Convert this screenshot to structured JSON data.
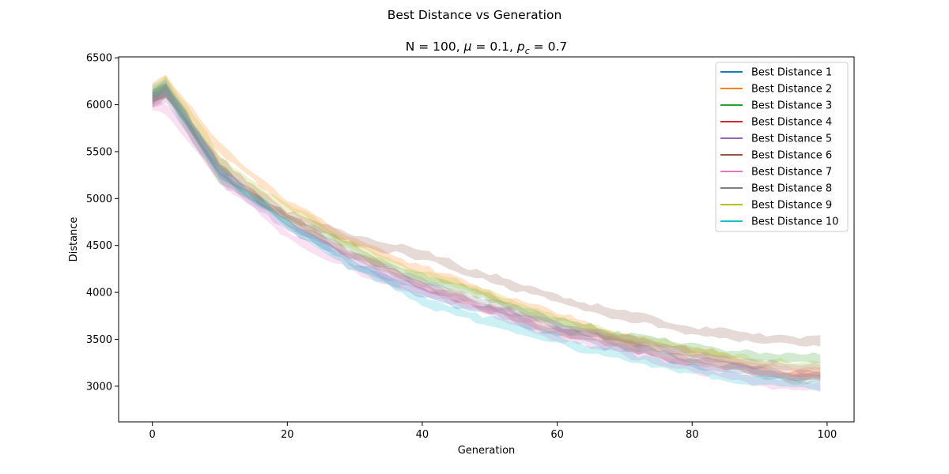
{
  "chart_data": {
    "type": "line",
    "suptitle": "Best Distance vs Generation",
    "title": {
      "prefix": "N = 100, ",
      "mu_symbol": "μ",
      "mu_value": " = 0.1, ",
      "pc_symbol": "p",
      "pc_subscript": "c",
      "pc_value": " = 0.7"
    },
    "xlabel": "Generation",
    "ylabel": "Distance",
    "xlim": [
      -5,
      104
    ],
    "ylim": [
      2620,
      6510
    ],
    "xticks": [
      0,
      20,
      40,
      60,
      80,
      100
    ],
    "yticks": [
      3000,
      3500,
      4000,
      4500,
      5000,
      5500,
      6000,
      6500
    ],
    "grid": false,
    "legend_position": "top-right",
    "generations": {
      "start": 0,
      "end": 99
    },
    "series": [
      {
        "name": "Best Distance 1",
        "color": "#1f77b4",
        "anchors": [
          [
            0,
            6100
          ],
          [
            2,
            6150
          ],
          [
            10,
            5320
          ],
          [
            20,
            4750
          ],
          [
            30,
            4300
          ],
          [
            40,
            3990
          ],
          [
            50,
            3790
          ],
          [
            60,
            3570
          ],
          [
            70,
            3420
          ],
          [
            80,
            3260
          ],
          [
            90,
            3150
          ],
          [
            99,
            3080
          ]
        ]
      },
      {
        "name": "Best Distance 2",
        "color": "#ff7f0e",
        "anchors": [
          [
            0,
            6180
          ],
          [
            2,
            6250
          ],
          [
            10,
            5520
          ],
          [
            20,
            4960
          ],
          [
            30,
            4540
          ],
          [
            40,
            4230
          ],
          [
            50,
            3980
          ],
          [
            60,
            3730
          ],
          [
            70,
            3520
          ],
          [
            80,
            3350
          ],
          [
            90,
            3220
          ],
          [
            99,
            3120
          ]
        ]
      },
      {
        "name": "Best Distance 3",
        "color": "#2ca02c",
        "anchors": [
          [
            0,
            6080
          ],
          [
            2,
            6150
          ],
          [
            10,
            5200
          ],
          [
            20,
            4800
          ],
          [
            30,
            4450
          ],
          [
            40,
            4150
          ],
          [
            50,
            3950
          ],
          [
            60,
            3680
          ],
          [
            70,
            3520
          ],
          [
            80,
            3400
          ],
          [
            90,
            3320
          ],
          [
            99,
            3250
          ]
        ]
      },
      {
        "name": "Best Distance 4",
        "color": "#d62728",
        "anchors": [
          [
            0,
            6050
          ],
          [
            2,
            6150
          ],
          [
            10,
            5300
          ],
          [
            20,
            4800
          ],
          [
            30,
            4380
          ],
          [
            40,
            4050
          ],
          [
            50,
            3820
          ],
          [
            60,
            3600
          ],
          [
            70,
            3420
          ],
          [
            80,
            3280
          ],
          [
            90,
            3160
          ],
          [
            99,
            3080
          ]
        ]
      },
      {
        "name": "Best Distance 5",
        "color": "#9467bd",
        "anchors": [
          [
            0,
            6050
          ],
          [
            2,
            6100
          ],
          [
            10,
            5250
          ],
          [
            20,
            4700
          ],
          [
            30,
            4350
          ],
          [
            40,
            4050
          ],
          [
            50,
            3850
          ],
          [
            60,
            3650
          ],
          [
            70,
            3500
          ],
          [
            80,
            3350
          ],
          [
            90,
            3250
          ],
          [
            99,
            3180
          ]
        ]
      },
      {
        "name": "Best Distance 6",
        "color": "#8c564b",
        "anchors": [
          [
            0,
            6100
          ],
          [
            2,
            6150
          ],
          [
            10,
            5350
          ],
          [
            20,
            4850
          ],
          [
            30,
            4550
          ],
          [
            40,
            4400
          ],
          [
            50,
            4150
          ],
          [
            60,
            3950
          ],
          [
            70,
            3750
          ],
          [
            80,
            3600
          ],
          [
            90,
            3500
          ],
          [
            99,
            3460
          ]
        ]
      },
      {
        "name": "Best Distance 7",
        "color": "#e377c2",
        "anchors": [
          [
            0,
            6000
          ],
          [
            2,
            5950
          ],
          [
            10,
            5250
          ],
          [
            20,
            4620
          ],
          [
            30,
            4250
          ],
          [
            40,
            4000
          ],
          [
            50,
            3800
          ],
          [
            60,
            3550
          ],
          [
            70,
            3380
          ],
          [
            80,
            3200
          ],
          [
            90,
            3060
          ],
          [
            99,
            2970
          ]
        ]
      },
      {
        "name": "Best Distance 8",
        "color": "#7f7f7f",
        "anchors": [
          [
            0,
            6050
          ],
          [
            2,
            6200
          ],
          [
            10,
            5280
          ],
          [
            20,
            4750
          ],
          [
            30,
            4400
          ],
          [
            40,
            4100
          ],
          [
            50,
            3880
          ],
          [
            60,
            3650
          ],
          [
            70,
            3450
          ],
          [
            80,
            3280
          ],
          [
            90,
            3150
          ],
          [
            99,
            3060
          ]
        ]
      },
      {
        "name": "Best Distance 9",
        "color": "#bcbd22",
        "anchors": [
          [
            0,
            6150
          ],
          [
            2,
            6250
          ],
          [
            10,
            5400
          ],
          [
            20,
            4900
          ],
          [
            30,
            4480
          ],
          [
            40,
            4180
          ],
          [
            50,
            3980
          ],
          [
            60,
            3700
          ],
          [
            70,
            3520
          ],
          [
            80,
            3380
          ],
          [
            90,
            3270
          ],
          [
            99,
            3200
          ]
        ]
      },
      {
        "name": "Best Distance 10",
        "color": "#17becf",
        "anchors": [
          [
            0,
            6120
          ],
          [
            2,
            6200
          ],
          [
            10,
            5250
          ],
          [
            20,
            4720
          ],
          [
            30,
            4280
          ],
          [
            40,
            3920
          ],
          [
            50,
            3700
          ],
          [
            60,
            3480
          ],
          [
            70,
            3320
          ],
          [
            80,
            3180
          ],
          [
            90,
            3060
          ],
          [
            99,
            2960
          ]
        ]
      }
    ]
  }
}
